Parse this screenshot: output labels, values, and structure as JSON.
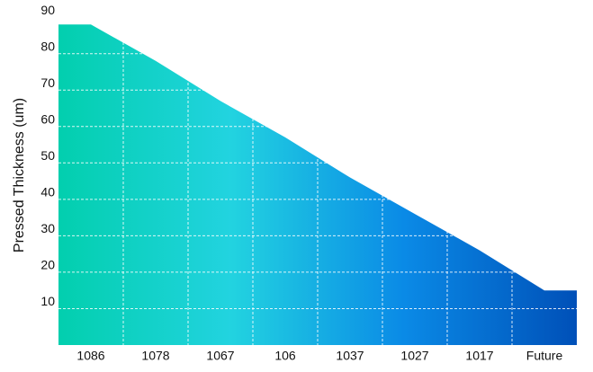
{
  "chart_data": {
    "type": "area",
    "y_label": "Pressed Thickness (um)",
    "categories": [
      "1086",
      "1078",
      "1067",
      "106",
      "1037",
      "1027",
      "1017",
      "Future"
    ],
    "values": [
      88,
      78,
      67,
      57,
      46,
      36,
      26,
      15
    ],
    "colors": [
      "#02cfae",
      "#22d3e0",
      "#0a8ae6",
      "#0050b8"
    ],
    "ylim": [
      0,
      93
    ],
    "yticks": [
      10,
      20,
      30,
      40,
      50,
      60,
      70,
      80,
      90
    ],
    "grid": true
  }
}
